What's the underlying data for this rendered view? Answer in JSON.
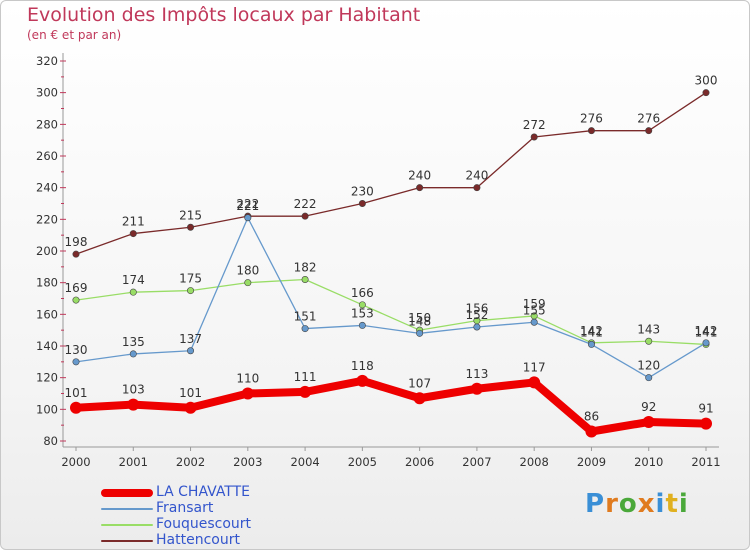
{
  "header": {
    "title": "Evolution des Impôts locaux par Habitant",
    "subtitle": "(en € et par an)"
  },
  "chart_data": {
    "type": "line",
    "title": "Evolution des Impôts locaux par Habitant",
    "subtitle": "(en € et par an)",
    "xlabel": "",
    "ylabel": "",
    "x": [
      "2000",
      "2001",
      "2002",
      "2003",
      "2004",
      "2005",
      "2006",
      "2007",
      "2008",
      "2009",
      "2010",
      "2011"
    ],
    "ylim": [
      80,
      320
    ],
    "yticks": [
      "80",
      "100",
      "120",
      "140",
      "160",
      "180",
      "200",
      "220",
      "240",
      "260",
      "280",
      "300",
      "320"
    ],
    "grid": false,
    "legend_position": "bottom-left",
    "series": [
      {
        "name": "LA CHAVATTE",
        "color": "#ee0000",
        "values": [
          101,
          103,
          101,
          110,
          111,
          118,
          107,
          113,
          117,
          86,
          92,
          91
        ]
      },
      {
        "name": "Fransart",
        "color": "#6699cc",
        "values": [
          130,
          135,
          137,
          221,
          151,
          153,
          148,
          152,
          155,
          141,
          120,
          142
        ]
      },
      {
        "name": "Fouquescourt",
        "color": "#99dd66",
        "values": [
          169,
          174,
          175,
          180,
          182,
          166,
          150,
          156,
          159,
          142,
          143,
          141
        ]
      },
      {
        "name": "Hattencourt",
        "color": "#7a2a2a",
        "values": [
          198,
          211,
          215,
          222,
          222,
          230,
          240,
          240,
          272,
          276,
          276,
          300
        ]
      }
    ]
  },
  "brand": {
    "logo_letters": [
      "P",
      "r",
      "o",
      "x",
      "i",
      "t",
      "i"
    ],
    "logo_colors": [
      "#3a8fd6",
      "#e07b1f",
      "#4aa83a",
      "#e07b1f",
      "#3a8fd6",
      "#e0b01f",
      "#4aa83a"
    ]
  }
}
